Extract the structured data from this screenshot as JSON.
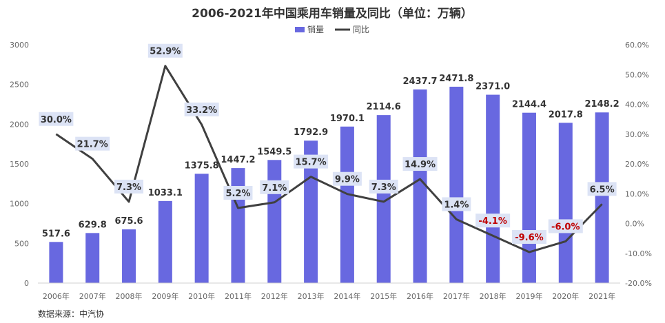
{
  "chart_data": {
    "type": "bar+line",
    "title": "2006-2021年中国乘用车销量及同比（单位：万辆）",
    "source": "数据来源：中汽协",
    "categories": [
      "2006年",
      "2007年",
      "2008年",
      "2009年",
      "2010年",
      "2011年",
      "2012年",
      "2013年",
      "2014年",
      "2015年",
      "2016年",
      "2017年",
      "2018年",
      "2019年",
      "2020年",
      "2021年"
    ],
    "series": [
      {
        "name": "销量",
        "type": "bar",
        "axis": "left",
        "color": "#6868E0",
        "values": [
          517.6,
          629.8,
          675.6,
          1033.1,
          1375.8,
          1447.2,
          1549.5,
          1792.9,
          1970.1,
          2114.6,
          2437.7,
          2471.8,
          2371.0,
          2144.4,
          2017.8,
          2148.2
        ],
        "labels": [
          "517.6",
          "629.8",
          "675.6",
          "1033.1",
          "1375.8",
          "1447.2",
          "1549.5",
          "1792.9",
          "1970.1",
          "2114.6",
          "2437.7",
          "2471.8",
          "2371.0",
          "2144.4",
          "2017.8",
          "2148.2"
        ]
      },
      {
        "name": "同比",
        "type": "line",
        "axis": "right",
        "color": "#404040",
        "values": [
          30.0,
          21.7,
          7.3,
          52.9,
          33.2,
          5.2,
          7.1,
          15.7,
          9.9,
          7.3,
          14.9,
          1.4,
          -4.1,
          -9.6,
          -6.0,
          6.5
        ],
        "labels": [
          "30.0%",
          "21.7%",
          "7.3%",
          "52.9%",
          "33.2%",
          "5.2%",
          "7.1%",
          "15.7%",
          "9.9%",
          "7.3%",
          "14.9%",
          "1.4%",
          "-4.1%",
          "-9.6%",
          "-6.0%",
          "6.5%"
        ]
      }
    ],
    "y_left": {
      "range": [
        0,
        3000
      ],
      "ticks": [
        "0",
        "500",
        "1000",
        "1500",
        "2000",
        "2500",
        "3000"
      ]
    },
    "y_right": {
      "range": [
        -20,
        60
      ],
      "ticks": [
        "-20.0%",
        "-10.0%",
        "0.0%",
        "10.0%",
        "20.0%",
        "30.0%",
        "40.0%",
        "50.0%",
        "60.0%"
      ]
    },
    "legend_position": "top-center",
    "grid": false,
    "colors": {
      "positive_label": "#333333",
      "negative_label": "#C00000",
      "label_box": "#DCE3F5"
    }
  }
}
